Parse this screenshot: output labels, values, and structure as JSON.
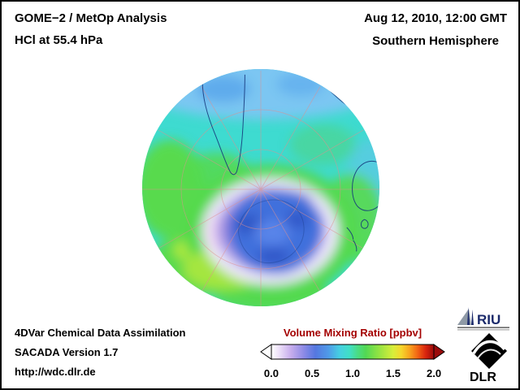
{
  "header": {
    "title_line1": "GOME−2 / MetOp Analysis",
    "title_line2": "HCl at 55.4 hPa",
    "date_line": "Aug 12, 2010, 12:00 GMT",
    "region_line": "Southern Hemisphere"
  },
  "footer": {
    "line1": "4DVar Chemical Data Assimilation",
    "line2": "SACADA Version 1.7",
    "line3": "http://wdc.dlr.de"
  },
  "colorbar": {
    "title": "Volume Mixing Ratio [ppbv]",
    "title_color": "#a40000",
    "ticks": [
      "0.0",
      "0.5",
      "1.0",
      "1.5",
      "2.0"
    ],
    "range_min": 0.0,
    "range_max": 2.0,
    "under_arrow_color": "#ffffff",
    "over_arrow_color": "#9b0b0b",
    "stops": [
      {
        "at": 0.0,
        "color": "#ffffff"
      },
      {
        "at": 0.05,
        "color": "#ecdff8"
      },
      {
        "at": 0.12,
        "color": "#c7aded"
      },
      {
        "at": 0.2,
        "color": "#8c8ae6"
      },
      {
        "at": 0.27,
        "color": "#5577e0"
      },
      {
        "at": 0.35,
        "color": "#4f9ae8"
      },
      {
        "at": 0.42,
        "color": "#45cfe2"
      },
      {
        "at": 0.48,
        "color": "#40dfc6"
      },
      {
        "at": 0.53,
        "color": "#4adc85"
      },
      {
        "at": 0.58,
        "color": "#52d854"
      },
      {
        "at": 0.65,
        "color": "#8ae244"
      },
      {
        "at": 0.75,
        "color": "#d8ee3a"
      },
      {
        "at": 0.8,
        "color": "#f5d62c"
      },
      {
        "at": 0.85,
        "color": "#f8a41e"
      },
      {
        "at": 0.9,
        "color": "#f26414"
      },
      {
        "at": 0.95,
        "color": "#d8240e"
      },
      {
        "at": 1.0,
        "color": "#9b0b0b"
      }
    ]
  },
  "globe_palette": {
    "background_cyan": "#3edbd0",
    "equatorward_light_blue": "#7cc6f2",
    "midlatitude_green": "#55d94e",
    "collar_white": "#efe9fb",
    "collar_purple": "#7d6fd6",
    "vortex_blue": "#3f6fdc",
    "graticule_pink": "#e08f8f",
    "coastline_navy": "#16397c"
  },
  "logos": {
    "riu_text": "RIU",
    "dlr_text": "DLR"
  },
  "chart_data": {
    "type": "heatmap",
    "title": "GOME−2 / MetOp Analysis — HCl at 55.4 hPa",
    "datetime": "Aug 12, 2010, 12:00 GMT",
    "region": "Southern Hemisphere",
    "projection": "south polar azimuthal, graticule every 30° longitude / 30° latitude",
    "quantity": "Volume Mixing Ratio",
    "units": "ppbv",
    "scale_range": [
      0.0,
      2.0
    ],
    "scale_ticks": [
      0.0,
      0.5,
      1.0,
      1.5,
      2.0
    ],
    "colorbar_extends": {
      "below_min": true,
      "above_max": true
    },
    "features": [
      {
        "area": "polar vortex core over Antarctica (blue)",
        "approx_value_ppbv": 0.6
      },
      {
        "area": "vortex collar ring (white/lavender)",
        "approx_value_ppbv": 0.2
      },
      {
        "area": "inner collar edge (violet)",
        "approx_value_ppbv": 0.35
      },
      {
        "area": "mid-latitude ring (green, patchy yellow-green)",
        "approx_value_ppbv": 1.1
      },
      {
        "area": "subtropical background (turquoise)",
        "approx_value_ppbv": 0.85
      },
      {
        "area": "equatorward band near map edge (light blue)",
        "approx_value_ppbv": 0.6
      }
    ]
  }
}
